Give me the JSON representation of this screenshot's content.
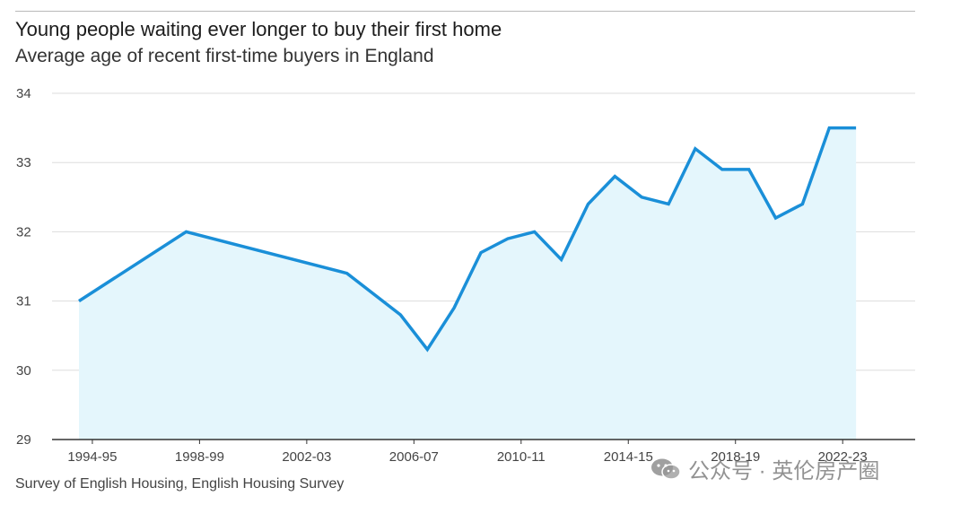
{
  "header": {
    "title": "Young people waiting ever longer to buy their first home",
    "subtitle": "Average age of recent first-time buyers in England"
  },
  "footer": {
    "source": "Survey of English Housing, English Housing Survey"
  },
  "watermark": {
    "text": "公众号 · 英伦房产圈",
    "icon": "wechat-icon"
  },
  "colors": {
    "line": "#1a8fd8",
    "area": "#e4f6fc",
    "grid": "#dddddd",
    "axis": "#333333"
  },
  "chart_data": {
    "type": "area",
    "title": "Young people waiting ever longer to buy their first home",
    "subtitle": "Average age of recent first-time buyers in England",
    "xlabel": "",
    "ylabel": "",
    "ylim": [
      29,
      34
    ],
    "yticks": [
      29,
      30,
      31,
      32,
      33,
      34
    ],
    "xlim": [
      1993.5,
      2023.5
    ],
    "xtick_labels": [
      {
        "x": 1994,
        "label": "1994-95"
      },
      {
        "x": 1998,
        "label": "1998-99"
      },
      {
        "x": 2002,
        "label": "2002-03"
      },
      {
        "x": 2006,
        "label": "2006-07"
      },
      {
        "x": 2010,
        "label": "2010-11"
      },
      {
        "x": 2014,
        "label": "2014-15"
      },
      {
        "x": 2018,
        "label": "2018-19"
      },
      {
        "x": 2022,
        "label": "2022-23"
      }
    ],
    "grid": true,
    "legend": "none",
    "series": [
      {
        "points": [
          {
            "x": 1993.5,
            "y": 31.0
          },
          {
            "x": 1997.5,
            "y": 32.0
          },
          {
            "x": 2003.5,
            "y": 31.4
          },
          {
            "x": 2005.5,
            "y": 30.8
          },
          {
            "x": 2006.5,
            "y": 30.3
          },
          {
            "x": 2007.5,
            "y": 30.9
          },
          {
            "x": 2008.5,
            "y": 31.7
          },
          {
            "x": 2009.5,
            "y": 31.9
          },
          {
            "x": 2010.5,
            "y": 32.0
          },
          {
            "x": 2011.5,
            "y": 31.6
          },
          {
            "x": 2012.5,
            "y": 32.4
          },
          {
            "x": 2013.5,
            "y": 32.8
          },
          {
            "x": 2014.5,
            "y": 32.5
          },
          {
            "x": 2015.5,
            "y": 32.4
          },
          {
            "x": 2016.5,
            "y": 33.2
          },
          {
            "x": 2017.5,
            "y": 32.9
          },
          {
            "x": 2018.5,
            "y": 32.9
          },
          {
            "x": 2019.5,
            "y": 32.2
          },
          {
            "x": 2020.5,
            "y": 32.4
          },
          {
            "x": 2021.5,
            "y": 33.5
          },
          {
            "x": 2022.5,
            "y": 33.5
          }
        ]
      }
    ]
  }
}
